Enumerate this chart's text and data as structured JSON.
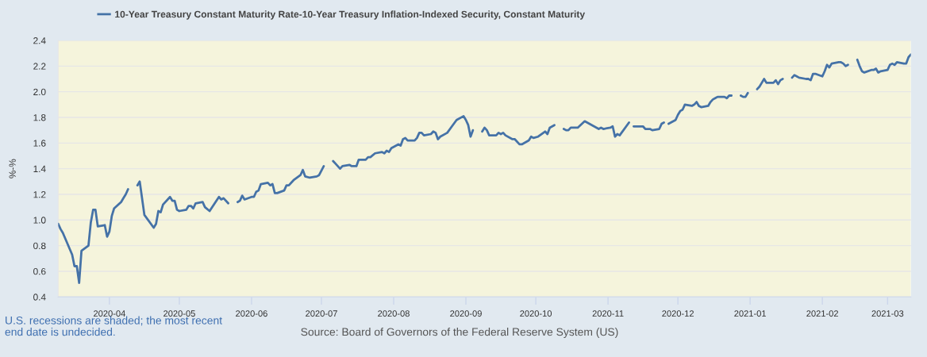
{
  "chart_data": {
    "type": "line",
    "ylabel": "%-%",
    "legend": "top",
    "grid": "y",
    "xlim": [
      "2020-03-10",
      "2021-03-11"
    ],
    "ylim": [
      0.4,
      2.4
    ],
    "xticks": [
      "2020-04",
      "2020-05",
      "2020-06",
      "2020-07",
      "2020-08",
      "2020-09",
      "2020-10",
      "2020-11",
      "2020-12",
      "2021-01",
      "2021-02",
      "2021-03"
    ],
    "yticks": [
      0.4,
      0.6,
      0.8,
      {
        "value": 1,
        "label": "1.0"
      },
      1.2,
      1.4,
      1.6,
      1.8,
      {
        "value": 2,
        "label": "2.0"
      },
      2.2,
      2.4
    ],
    "bands": [
      {
        "axis": "x",
        "from": "2020-03-10",
        "to": "2021-03-11",
        "color": "#f5f4dc"
      }
    ],
    "annotations": [
      "U.S. recessions are shaded; the most recent\nend date is undecided.",
      "Source: Board of Governors of the Federal Reserve System (US)"
    ],
    "x": [
      "2020-03-10",
      "2020-03-11",
      "2020-03-12",
      "2020-03-16",
      "2020-03-17",
      "2020-03-18",
      "2020-03-19",
      "2020-03-20",
      "2020-03-23",
      "2020-03-24",
      "2020-03-25",
      "2020-03-26",
      "2020-03-27",
      "2020-03-30",
      "2020-03-31",
      "2020-04-01",
      "2020-04-02",
      "2020-04-03",
      "2020-04-06",
      "2020-04-07",
      "2020-04-08",
      "2020-04-09",
      "2020-04-10",
      "2020-04-13",
      "2020-04-14",
      "2020-04-16",
      "2020-04-20",
      "2020-04-21",
      "2020-04-22",
      "2020-04-23",
      "2020-04-24",
      "2020-04-27",
      "2020-04-28",
      "2020-04-29",
      "2020-04-30",
      "2020-05-01",
      "2020-05-04",
      "2020-05-05",
      "2020-05-06",
      "2020-05-07",
      "2020-05-08",
      "2020-05-11",
      "2020-05-12",
      "2020-05-14",
      "2020-05-18",
      "2020-05-19",
      "2020-05-20",
      "2020-05-22",
      "2020-05-25",
      "2020-05-26",
      "2020-05-27",
      "2020-05-28",
      "2020-05-29",
      "2020-06-01",
      "2020-06-02",
      "2020-06-03",
      "2020-06-04",
      "2020-06-05",
      "2020-06-08",
      "2020-06-09",
      "2020-06-10",
      "2020-06-11",
      "2020-06-12",
      "2020-06-15",
      "2020-06-16",
      "2020-06-17",
      "2020-06-19",
      "2020-06-22",
      "2020-06-23",
      "2020-06-24",
      "2020-06-26",
      "2020-06-29",
      "2020-06-30",
      "2020-07-02",
      "2020-07-03",
      "2020-07-06",
      "2020-07-07",
      "2020-07-09",
      "2020-07-10",
      "2020-07-13",
      "2020-07-14",
      "2020-07-16",
      "2020-07-17",
      "2020-07-20",
      "2020-07-21",
      "2020-07-22",
      "2020-07-24",
      "2020-07-27",
      "2020-07-28",
      "2020-07-29",
      "2020-07-30",
      "2020-07-31",
      "2020-08-03",
      "2020-08-04",
      "2020-08-05",
      "2020-08-06",
      "2020-08-07",
      "2020-08-10",
      "2020-08-11",
      "2020-08-12",
      "2020-08-13",
      "2020-08-14",
      "2020-08-17",
      "2020-08-18",
      "2020-08-19",
      "2020-08-20",
      "2020-08-21",
      "2020-08-24",
      "2020-08-26",
      "2020-08-28",
      "2020-08-31",
      "2020-09-01",
      "2020-09-02",
      "2020-09-03",
      "2020-09-04",
      "2020-09-07",
      "2020-09-08",
      "2020-09-09",
      "2020-09-10",
      "2020-09-11",
      "2020-09-14",
      "2020-09-15",
      "2020-09-16",
      "2020-09-17",
      "2020-09-18",
      "2020-09-21",
      "2020-09-22",
      "2020-09-24",
      "2020-09-25",
      "2020-09-28",
      "2020-09-29",
      "2020-09-30",
      "2020-10-02",
      "2020-10-05",
      "2020-10-06",
      "2020-10-07",
      "2020-10-09",
      "2020-10-12",
      "2020-10-13",
      "2020-10-14",
      "2020-10-15",
      "2020-10-16",
      "2020-10-19",
      "2020-10-22",
      "2020-10-28",
      "2020-10-29",
      "2020-10-30",
      "2020-11-02",
      "2020-11-03",
      "2020-11-04",
      "2020-11-05",
      "2020-11-06",
      "2020-11-10",
      "2020-11-11",
      "2020-11-12",
      "2020-11-13",
      "2020-11-16",
      "2020-11-17",
      "2020-11-19",
      "2020-11-20",
      "2020-11-23",
      "2020-11-24",
      "2020-11-25",
      "2020-11-26",
      "2020-11-27",
      "2020-11-30",
      "2020-12-01",
      "2020-12-02",
      "2020-12-03",
      "2020-12-04",
      "2020-12-07",
      "2020-12-08",
      "2020-12-09",
      "2020-12-10",
      "2020-12-11",
      "2020-12-14",
      "2020-12-15",
      "2020-12-16",
      "2020-12-17",
      "2020-12-18",
      "2020-12-21",
      "2020-12-22",
      "2020-12-23",
      "2020-12-24",
      "2020-12-25",
      "2020-12-28",
      "2020-12-29",
      "2020-12-30",
      "2020-12-31",
      "2021-01-01",
      "2021-01-04",
      "2021-01-05",
      "2021-01-06",
      "2021-01-07",
      "2021-01-08",
      "2021-01-11",
      "2021-01-12",
      "2021-01-13",
      "2021-01-14",
      "2021-01-15",
      "2021-01-18",
      "2021-01-19",
      "2021-01-20",
      "2021-01-21",
      "2021-01-22",
      "2021-01-25",
      "2021-01-26",
      "2021-01-27",
      "2021-01-28",
      "2021-01-29",
      "2021-02-01",
      "2021-02-02",
      "2021-02-03",
      "2021-02-04",
      "2021-02-05",
      "2021-02-08",
      "2021-02-09",
      "2021-02-10",
      "2021-02-11",
      "2021-02-12",
      "2021-02-15",
      "2021-02-16",
      "2021-02-17",
      "2021-02-18",
      "2021-02-19",
      "2021-02-22",
      "2021-02-23",
      "2021-02-24",
      "2021-02-25",
      "2021-02-26",
      "2021-03-01",
      "2021-03-02",
      "2021-03-03",
      "2021-03-04",
      "2021-03-05",
      "2021-03-08",
      "2021-03-09",
      "2021-03-10",
      "2021-03-11"
    ],
    "series": [
      {
        "name": "10-Year Treasury Constant Maturity Rate-10-Year Treasury Inflation-Indexed Security, Constant Maturity",
        "color": "#4572a7",
        "values": [
          0.97,
          0.93,
          0.9,
          0.73,
          0.64,
          0.64,
          0.51,
          0.76,
          0.8,
          0.98,
          1.08,
          1.08,
          0.95,
          0.96,
          0.87,
          0.91,
          1.03,
          1.09,
          1.14,
          1.17,
          1.2,
          1.24,
          null,
          1.27,
          1.3,
          1.04,
          0.94,
          0.97,
          1.07,
          1.06,
          1.12,
          1.18,
          1.15,
          1.15,
          1.08,
          1.07,
          1.08,
          1.11,
          1.11,
          1.09,
          1.13,
          1.14,
          1.1,
          1.07,
          1.18,
          1.16,
          1.17,
          1.13,
          null,
          1.14,
          1.15,
          1.19,
          1.16,
          1.18,
          1.18,
          1.22,
          1.23,
          1.28,
          1.29,
          1.27,
          1.28,
          1.21,
          1.21,
          1.23,
          1.27,
          1.27,
          1.31,
          1.35,
          1.39,
          1.34,
          1.33,
          1.34,
          1.35,
          1.42,
          null,
          1.46,
          1.44,
          1.4,
          1.42,
          1.43,
          1.42,
          1.42,
          1.47,
          1.47,
          1.49,
          1.49,
          1.52,
          1.53,
          1.52,
          1.54,
          1.53,
          1.56,
          1.59,
          1.58,
          1.63,
          1.64,
          1.62,
          1.62,
          1.64,
          1.68,
          1.68,
          1.66,
          1.67,
          1.69,
          1.68,
          1.63,
          1.65,
          1.68,
          1.73,
          1.78,
          1.81,
          1.78,
          1.74,
          1.65,
          1.7,
          null,
          1.69,
          1.72,
          1.7,
          1.66,
          1.66,
          1.68,
          1.67,
          1.68,
          1.66,
          1.63,
          1.63,
          1.59,
          1.59,
          1.62,
          1.65,
          1.64,
          1.65,
          1.69,
          1.67,
          1.72,
          1.74,
          null,
          1.71,
          1.7,
          1.7,
          1.72,
          1.72,
          1.77,
          1.71,
          1.72,
          1.71,
          1.72,
          1.73,
          1.65,
          1.67,
          1.66,
          1.76,
          null,
          1.73,
          1.73,
          1.73,
          1.71,
          1.71,
          1.7,
          1.71,
          1.75,
          1.76,
          null,
          1.75,
          1.78,
          1.82,
          1.85,
          1.86,
          1.9,
          1.89,
          1.9,
          1.92,
          1.89,
          1.88,
          1.89,
          1.92,
          1.94,
          1.95,
          1.96,
          1.96,
          1.95,
          1.97,
          1.97,
          null,
          1.97,
          1.96,
          1.96,
          1.99,
          null,
          2.02,
          2.04,
          2.07,
          2.1,
          2.07,
          2.07,
          2.09,
          2.06,
          2.09,
          2.1,
          null,
          2.11,
          2.13,
          2.12,
          2.11,
          2.1,
          2.1,
          2.09,
          2.14,
          2.14,
          2.12,
          2.16,
          2.21,
          2.19,
          2.22,
          2.23,
          2.23,
          2.22,
          2.2,
          2.21,
          null,
          2.25,
          2.2,
          2.16,
          2.15,
          2.17,
          2.17,
          2.18,
          2.15,
          2.16,
          2.17,
          2.21,
          2.22,
          2.21,
          2.23,
          2.22,
          2.22,
          2.27,
          2.29
        ]
      }
    ]
  }
}
